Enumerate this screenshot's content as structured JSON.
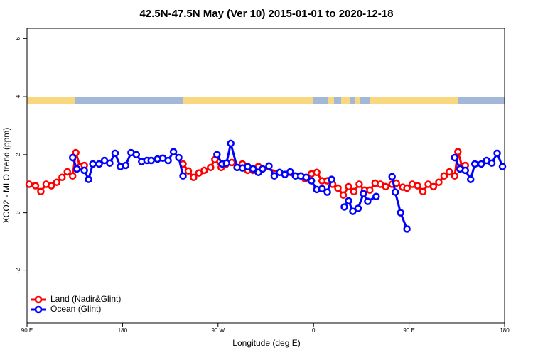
{
  "chart_data": {
    "type": "line",
    "title": "42.5N-47.5N May (Ver 10)   2015-01-01 to 2020-12-18",
    "x_label": "Longitude (deg E)",
    "y_label": "XCO2 - MLO trend (ppm)",
    "xlim": [
      90,
      540
    ],
    "xticks": [
      {
        "value": 90,
        "label": "90 E"
      },
      180,
      {
        "value": 270,
        "label": "90 W"
      },
      {
        "value": 360,
        "label": "0"
      },
      {
        "value": 450,
        "label": "90 E"
      },
      {
        "value": 540,
        "label": "180"
      }
    ],
    "ylim": [
      -3.8,
      6.35
    ],
    "yticks": [
      -2,
      0,
      2,
      4,
      6
    ],
    "legend": "bottom-left",
    "series": [
      {
        "name": "Land (Nadir&Glint)",
        "color": "#ff0000",
        "x": [
          92,
          98,
          103,
          108,
          113,
          118,
          123,
          128,
          133,
          136,
          140,
          144,
          null,
          237,
          242,
          247,
          252,
          257,
          263,
          267,
          273,
          277,
          283,
          288,
          293,
          298,
          303,
          308,
          352,
          358,
          363,
          368,
          373,
          378,
          383,
          388,
          393,
          398,
          403,
          408,
          413,
          418,
          423,
          428,
          434,
          438,
          444,
          448,
          453,
          458,
          463,
          468,
          473,
          478,
          483,
          488,
          493,
          496,
          500,
          503
        ],
        "values": [
          0.98,
          0.93,
          0.73,
          0.98,
          0.93,
          1.05,
          1.22,
          1.41,
          1.27,
          2.07,
          1.59,
          1.63,
          null,
          1.68,
          1.44,
          1.22,
          1.37,
          1.46,
          1.56,
          1.83,
          1.56,
          1.66,
          1.73,
          1.56,
          1.68,
          1.46,
          1.46,
          1.59,
          1.17,
          1.34,
          1.39,
          1.1,
          1.1,
          0.98,
          0.85,
          0.61,
          0.9,
          0.73,
          0.98,
          0.78,
          0.78,
          1.02,
          0.98,
          0.9,
          0.98,
          1.02,
          0.88,
          0.85,
          0.98,
          0.93,
          0.73,
          0.98,
          0.9,
          1.05,
          1.27,
          1.41,
          1.27,
          2.1,
          1.59,
          1.63
        ]
      },
      {
        "name": "Ocean (Glint)",
        "color": "#0000ff",
        "x": [
          133,
          137,
          144,
          148,
          152,
          158,
          163,
          168,
          173,
          178,
          183,
          188,
          193,
          198,
          203,
          207,
          213,
          218,
          223,
          228,
          233,
          237,
          null,
          269,
          274,
          278,
          282,
          288,
          293,
          298,
          303,
          308,
          312,
          318,
          323,
          328,
          333,
          338,
          343,
          348,
          353,
          358,
          363,
          368,
          373,
          377,
          null,
          389,
          393,
          397,
          402,
          407,
          411,
          419,
          null,
          434,
          437,
          442,
          448,
          null,
          493,
          498,
          503,
          508,
          512,
          518,
          523,
          528,
          533,
          538
        ],
        "values": [
          1.9,
          1.51,
          1.46,
          1.15,
          1.68,
          1.68,
          1.8,
          1.71,
          2.05,
          1.59,
          1.63,
          2.07,
          2.0,
          1.76,
          1.8,
          1.8,
          1.85,
          1.88,
          1.8,
          2.1,
          1.9,
          1.27,
          null,
          2.0,
          1.68,
          1.71,
          2.39,
          1.56,
          1.54,
          1.59,
          1.51,
          1.39,
          1.51,
          1.61,
          1.27,
          1.39,
          1.32,
          1.41,
          1.27,
          1.27,
          1.22,
          1.1,
          0.8,
          0.83,
          0.71,
          1.15,
          null,
          0.2,
          0.41,
          0.05,
          0.15,
          0.66,
          0.39,
          0.56,
          null,
          1.24,
          0.71,
          0.0,
          -0.56,
          null,
          1.9,
          1.51,
          1.46,
          1.15,
          1.68,
          1.68,
          1.8,
          1.71,
          2.05,
          1.59
        ]
      }
    ]
  }
}
